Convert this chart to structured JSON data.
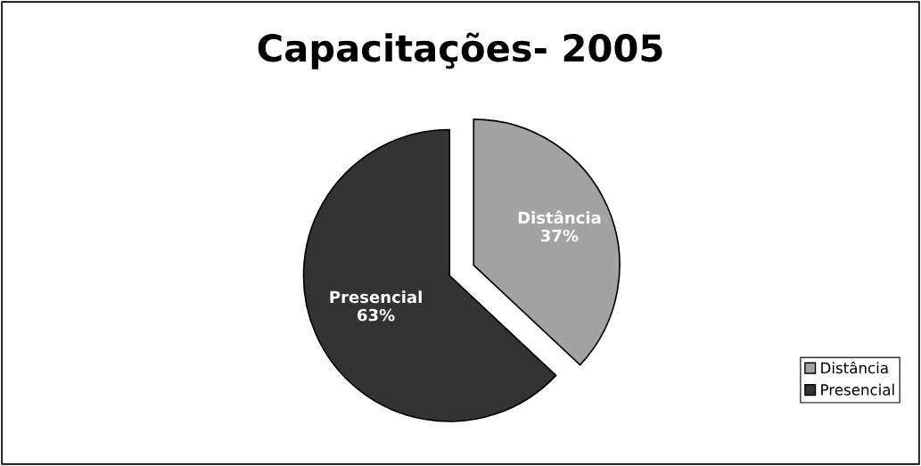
{
  "chart_data": {
    "type": "pie",
    "title": "Capacitações- 2005",
    "categories": [
      "Distância",
      "Presencial"
    ],
    "values": [
      37,
      63
    ],
    "value_labels": [
      "37%",
      "63%"
    ],
    "colors": [
      "#a3a3a3",
      "#333333"
    ],
    "legend": "bottom right"
  }
}
